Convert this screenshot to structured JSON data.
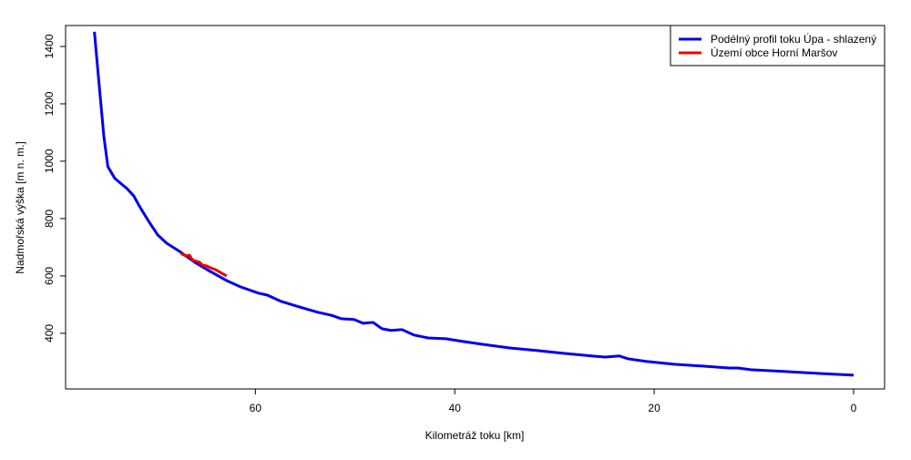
{
  "chart_data": {
    "type": "line",
    "x_label": "Kilometráž toku [km]",
    "y_label": "Nadmořská výška [m n. m.]",
    "xlim": [
      79.04,
      -3.11
    ],
    "ylim": [
      206,
      1473
    ],
    "xticks": [
      60,
      40,
      20,
      0
    ],
    "yticks": [
      400,
      600,
      800,
      1000,
      1200,
      1400
    ],
    "legend": "topright",
    "series": [
      {
        "name": "Podélný profil toku Úpa - shlazený",
        "color": "#0000ee",
        "x": [
          76.15,
          75.7,
          75.2,
          74.8,
          74.1,
          72.9,
          72.2,
          71.6,
          70.7,
          69.8,
          68.9,
          67.5,
          66.1,
          64.7,
          62.9,
          61.5,
          59.7,
          58.8,
          57.4,
          55.6,
          53.7,
          52.4,
          51.4,
          50.1,
          49.2,
          48.2,
          47.3,
          46.4,
          45.3,
          44.1,
          42.7,
          40.9,
          39.1,
          37.3,
          34.5,
          31.8,
          29.0,
          26.3,
          24.9,
          23.5,
          22.6,
          20.8,
          18.0,
          15.3,
          12.5,
          11.6,
          10.3,
          7.0,
          3.4,
          0
        ],
        "values": [
          1451,
          1276,
          1086,
          981,
          940,
          905,
          879,
          841,
          790,
          743,
          714,
          683,
          648,
          619,
          584,
          562,
          540,
          533,
          511,
          492,
          473,
          463,
          451,
          448,
          435,
          438,
          416,
          410,
          413,
          394,
          384,
          381,
          371,
          362,
          349,
          340,
          330,
          321,
          317,
          321,
          311,
          302,
          292,
          286,
          279,
          279,
          273,
          267,
          260,
          254
        ]
      },
      {
        "name": "Území obce Horní Maršov",
        "color": "#ee0000",
        "x": [
          67.5,
          67.0,
          66.6,
          66.3,
          66.0,
          65.6,
          65.3,
          64.9,
          64.5,
          64.0,
          63.4,
          62.9
        ],
        "values": [
          679,
          670,
          672,
          655,
          652,
          648,
          637,
          635,
          628,
          622,
          610,
          600
        ]
      }
    ]
  }
}
